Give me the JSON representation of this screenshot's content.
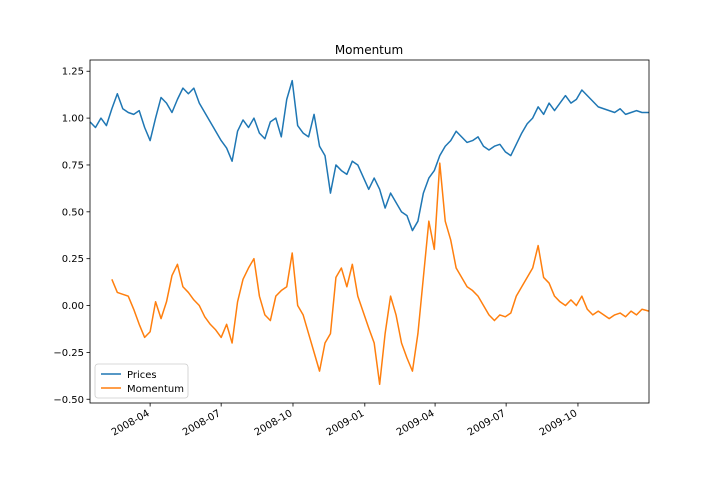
{
  "chart_data": {
    "type": "line",
    "title": "Momentum",
    "xlabel": "",
    "ylabel": "",
    "xlim": [
      "2008-01-15",
      "2009-12-31"
    ],
    "ylim": [
      -0.52,
      1.31
    ],
    "x_ticks": [
      "2008-04",
      "2008-07",
      "2008-10",
      "2009-01",
      "2009-04",
      "2009-07",
      "2009-10"
    ],
    "y_ticks": [
      "1.25",
      "1.00",
      "0.75",
      "0.50",
      "0.25",
      "0.00",
      "−0.25",
      "−0.50"
    ],
    "y_tick_values": [
      1.25,
      1.0,
      0.75,
      0.5,
      0.25,
      0.0,
      -0.25,
      -0.5
    ],
    "legend_position": "lower-left",
    "grid": false,
    "colors": {
      "Prices": "#1f77b4",
      "Momentum": "#ff7f0e"
    },
    "series": [
      {
        "name": "Prices",
        "points": [
          [
            "2008-01-15",
            0.98
          ],
          [
            "2008-01-22",
            0.95
          ],
          [
            "2008-01-29",
            1.0
          ],
          [
            "2008-02-05",
            0.96
          ],
          [
            "2008-02-12",
            1.05
          ],
          [
            "2008-02-19",
            1.13
          ],
          [
            "2008-02-26",
            1.05
          ],
          [
            "2008-03-04",
            1.03
          ],
          [
            "2008-03-11",
            1.02
          ],
          [
            "2008-03-18",
            1.04
          ],
          [
            "2008-03-25",
            0.95
          ],
          [
            "2008-04-01",
            0.88
          ],
          [
            "2008-04-08",
            1.0
          ],
          [
            "2008-04-15",
            1.11
          ],
          [
            "2008-04-22",
            1.08
          ],
          [
            "2008-04-29",
            1.03
          ],
          [
            "2008-05-06",
            1.1
          ],
          [
            "2008-05-13",
            1.16
          ],
          [
            "2008-05-20",
            1.13
          ],
          [
            "2008-05-27",
            1.16
          ],
          [
            "2008-06-03",
            1.08
          ],
          [
            "2008-06-10",
            1.03
          ],
          [
            "2008-06-17",
            0.98
          ],
          [
            "2008-06-24",
            0.93
          ],
          [
            "2008-07-01",
            0.88
          ],
          [
            "2008-07-08",
            0.84
          ],
          [
            "2008-07-15",
            0.77
          ],
          [
            "2008-07-22",
            0.93
          ],
          [
            "2008-07-29",
            0.99
          ],
          [
            "2008-08-05",
            0.95
          ],
          [
            "2008-08-12",
            1.0
          ],
          [
            "2008-08-19",
            0.92
          ],
          [
            "2008-08-26",
            0.89
          ],
          [
            "2008-09-02",
            0.98
          ],
          [
            "2008-09-09",
            1.0
          ],
          [
            "2008-09-16",
            0.9
          ],
          [
            "2008-09-23",
            1.1
          ],
          [
            "2008-09-30",
            1.2
          ],
          [
            "2008-10-07",
            0.96
          ],
          [
            "2008-10-14",
            0.92
          ],
          [
            "2008-10-21",
            0.9
          ],
          [
            "2008-10-28",
            1.02
          ],
          [
            "2008-11-04",
            0.85
          ],
          [
            "2008-11-11",
            0.8
          ],
          [
            "2008-11-18",
            0.6
          ],
          [
            "2008-11-25",
            0.75
          ],
          [
            "2008-12-02",
            0.72
          ],
          [
            "2008-12-09",
            0.7
          ],
          [
            "2008-12-16",
            0.77
          ],
          [
            "2008-12-23",
            0.75
          ],
          [
            "2009-01-06",
            0.62
          ],
          [
            "2009-01-13",
            0.68
          ],
          [
            "2009-01-20",
            0.62
          ],
          [
            "2009-01-27",
            0.52
          ],
          [
            "2009-02-03",
            0.6
          ],
          [
            "2009-02-10",
            0.55
          ],
          [
            "2009-02-17",
            0.5
          ],
          [
            "2009-02-24",
            0.48
          ],
          [
            "2009-03-03",
            0.4
          ],
          [
            "2009-03-10",
            0.45
          ],
          [
            "2009-03-17",
            0.6
          ],
          [
            "2009-03-24",
            0.68
          ],
          [
            "2009-03-31",
            0.72
          ],
          [
            "2009-04-07",
            0.8
          ],
          [
            "2009-04-14",
            0.85
          ],
          [
            "2009-04-21",
            0.88
          ],
          [
            "2009-04-28",
            0.93
          ],
          [
            "2009-05-05",
            0.9
          ],
          [
            "2009-05-12",
            0.87
          ],
          [
            "2009-05-19",
            0.88
          ],
          [
            "2009-05-26",
            0.9
          ],
          [
            "2009-06-02",
            0.85
          ],
          [
            "2009-06-09",
            0.83
          ],
          [
            "2009-06-16",
            0.85
          ],
          [
            "2009-06-23",
            0.86
          ],
          [
            "2009-06-30",
            0.82
          ],
          [
            "2009-07-07",
            0.8
          ],
          [
            "2009-07-14",
            0.86
          ],
          [
            "2009-07-21",
            0.92
          ],
          [
            "2009-07-28",
            0.97
          ],
          [
            "2009-08-04",
            1.0
          ],
          [
            "2009-08-11",
            1.06
          ],
          [
            "2009-08-18",
            1.02
          ],
          [
            "2009-08-25",
            1.08
          ],
          [
            "2009-09-01",
            1.04
          ],
          [
            "2009-09-08",
            1.08
          ],
          [
            "2009-09-15",
            1.12
          ],
          [
            "2009-09-22",
            1.08
          ],
          [
            "2009-09-29",
            1.1
          ],
          [
            "2009-10-06",
            1.15
          ],
          [
            "2009-10-13",
            1.12
          ],
          [
            "2009-10-20",
            1.09
          ],
          [
            "2009-10-27",
            1.06
          ],
          [
            "2009-11-03",
            1.05
          ],
          [
            "2009-11-10",
            1.04
          ],
          [
            "2009-11-17",
            1.03
          ],
          [
            "2009-11-24",
            1.05
          ],
          [
            "2009-12-01",
            1.02
          ],
          [
            "2009-12-08",
            1.03
          ],
          [
            "2009-12-15",
            1.04
          ],
          [
            "2009-12-22",
            1.03
          ],
          [
            "2009-12-31",
            1.03
          ]
        ]
      },
      {
        "name": "Momentum",
        "points": [
          [
            "2008-02-12",
            0.14
          ],
          [
            "2008-02-19",
            0.07
          ],
          [
            "2008-02-26",
            0.06
          ],
          [
            "2008-03-04",
            0.05
          ],
          [
            "2008-03-11",
            -0.02
          ],
          [
            "2008-03-18",
            -0.1
          ],
          [
            "2008-03-25",
            -0.17
          ],
          [
            "2008-04-01",
            -0.14
          ],
          [
            "2008-04-08",
            0.02
          ],
          [
            "2008-04-15",
            -0.07
          ],
          [
            "2008-04-22",
            0.02
          ],
          [
            "2008-04-29",
            0.16
          ],
          [
            "2008-05-06",
            0.22
          ],
          [
            "2008-05-13",
            0.1
          ],
          [
            "2008-05-20",
            0.07
          ],
          [
            "2008-05-27",
            0.03
          ],
          [
            "2008-06-03",
            0.0
          ],
          [
            "2008-06-10",
            -0.06
          ],
          [
            "2008-06-17",
            -0.1
          ],
          [
            "2008-06-24",
            -0.13
          ],
          [
            "2008-07-01",
            -0.17
          ],
          [
            "2008-07-08",
            -0.1
          ],
          [
            "2008-07-15",
            -0.2
          ],
          [
            "2008-07-22",
            0.02
          ],
          [
            "2008-07-29",
            0.14
          ],
          [
            "2008-08-05",
            0.2
          ],
          [
            "2008-08-12",
            0.25
          ],
          [
            "2008-08-19",
            0.05
          ],
          [
            "2008-08-26",
            -0.05
          ],
          [
            "2008-09-02",
            -0.08
          ],
          [
            "2008-09-09",
            0.05
          ],
          [
            "2008-09-16",
            0.08
          ],
          [
            "2008-09-23",
            0.1
          ],
          [
            "2008-09-30",
            0.28
          ],
          [
            "2008-10-07",
            0.0
          ],
          [
            "2008-10-14",
            -0.05
          ],
          [
            "2008-10-21",
            -0.15
          ],
          [
            "2008-10-28",
            -0.25
          ],
          [
            "2008-11-04",
            -0.35
          ],
          [
            "2008-11-11",
            -0.2
          ],
          [
            "2008-11-18",
            -0.15
          ],
          [
            "2008-11-25",
            0.15
          ],
          [
            "2008-12-02",
            0.2
          ],
          [
            "2008-12-09",
            0.1
          ],
          [
            "2008-12-16",
            0.22
          ],
          [
            "2008-12-23",
            0.05
          ],
          [
            "2009-01-06",
            -0.12
          ],
          [
            "2009-01-13",
            -0.2
          ],
          [
            "2009-01-20",
            -0.42
          ],
          [
            "2009-01-27",
            -0.15
          ],
          [
            "2009-02-03",
            0.05
          ],
          [
            "2009-02-10",
            -0.05
          ],
          [
            "2009-02-17",
            -0.2
          ],
          [
            "2009-02-24",
            -0.28
          ],
          [
            "2009-03-03",
            -0.35
          ],
          [
            "2009-03-10",
            -0.15
          ],
          [
            "2009-03-17",
            0.15
          ],
          [
            "2009-03-24",
            0.45
          ],
          [
            "2009-03-31",
            0.3
          ],
          [
            "2009-04-07",
            0.76
          ],
          [
            "2009-04-14",
            0.45
          ],
          [
            "2009-04-21",
            0.35
          ],
          [
            "2009-04-28",
            0.2
          ],
          [
            "2009-05-05",
            0.15
          ],
          [
            "2009-05-12",
            0.1
          ],
          [
            "2009-05-19",
            0.08
          ],
          [
            "2009-05-26",
            0.05
          ],
          [
            "2009-06-02",
            0.0
          ],
          [
            "2009-06-09",
            -0.05
          ],
          [
            "2009-06-16",
            -0.08
          ],
          [
            "2009-06-23",
            -0.05
          ],
          [
            "2009-06-30",
            -0.06
          ],
          [
            "2009-07-07",
            -0.04
          ],
          [
            "2009-07-14",
            0.05
          ],
          [
            "2009-07-21",
            0.1
          ],
          [
            "2009-07-28",
            0.15
          ],
          [
            "2009-08-04",
            0.2
          ],
          [
            "2009-08-11",
            0.32
          ],
          [
            "2009-08-18",
            0.15
          ],
          [
            "2009-08-25",
            0.12
          ],
          [
            "2009-09-01",
            0.05
          ],
          [
            "2009-09-08",
            0.02
          ],
          [
            "2009-09-15",
            0.0
          ],
          [
            "2009-09-22",
            0.03
          ],
          [
            "2009-09-29",
            0.0
          ],
          [
            "2009-10-06",
            0.05
          ],
          [
            "2009-10-13",
            -0.02
          ],
          [
            "2009-10-20",
            -0.05
          ],
          [
            "2009-10-27",
            -0.03
          ],
          [
            "2009-11-03",
            -0.05
          ],
          [
            "2009-11-10",
            -0.07
          ],
          [
            "2009-11-17",
            -0.05
          ],
          [
            "2009-11-24",
            -0.04
          ],
          [
            "2009-12-01",
            -0.06
          ],
          [
            "2009-12-08",
            -0.03
          ],
          [
            "2009-12-15",
            -0.05
          ],
          [
            "2009-12-22",
            -0.02
          ],
          [
            "2009-12-31",
            -0.03
          ]
        ]
      }
    ]
  }
}
